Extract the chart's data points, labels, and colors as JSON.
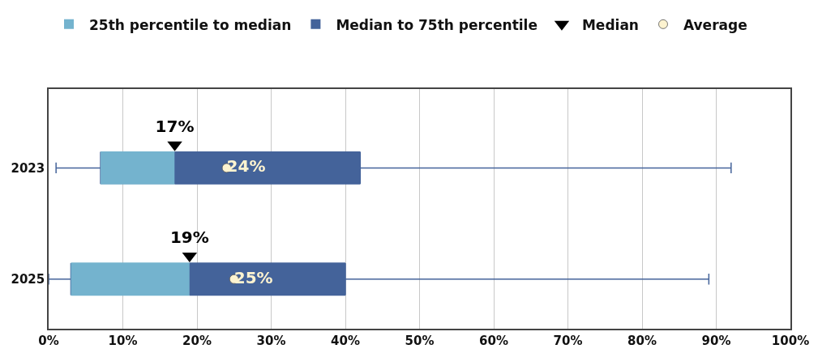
{
  "chart_data": {
    "type": "box",
    "orientation": "horizontal",
    "categories": [
      "2023",
      "2025"
    ],
    "boxes": [
      {
        "low": 1,
        "q1": 7,
        "median": 17,
        "q3": 42,
        "high": 92
      },
      {
        "low": 0,
        "q1": 3,
        "median": 19,
        "q3": 40,
        "high": 89
      }
    ],
    "series": [
      {
        "name": "25th percentile to median",
        "type": "bar",
        "color": "#74b3ce",
        "values": [
          10,
          16
        ],
        "base": [
          7,
          3
        ]
      },
      {
        "name": "Median to 75th percentile",
        "type": "bar",
        "color": "#44639a",
        "values": [
          25,
          21
        ],
        "base": [
          17,
          19
        ]
      },
      {
        "name": "Median",
        "type": "scatter",
        "marker": "triangle",
        "color": "#000000",
        "values": [
          17,
          19
        ],
        "value_labels": [
          "17%",
          "19%"
        ]
      },
      {
        "name": "Average",
        "type": "scatter",
        "marker": "circle",
        "color": "#fdf3d0",
        "values": [
          24,
          25
        ],
        "value_labels": [
          "24%",
          "25%"
        ]
      }
    ],
    "xlim": [
      0,
      100
    ],
    "xticks": [
      {
        "value": 0,
        "label": "0%"
      },
      {
        "value": 10,
        "label": "10%"
      },
      {
        "value": 20,
        "label": "20%"
      },
      {
        "value": 30,
        "label": "30%"
      },
      {
        "value": 40,
        "label": "40%"
      },
      {
        "value": 50,
        "label": "50%"
      },
      {
        "value": 60,
        "label": "60%"
      },
      {
        "value": 70,
        "label": "70%"
      },
      {
        "value": 80,
        "label": "80%"
      },
      {
        "value": 90,
        "label": "90%"
      },
      {
        "value": 100,
        "label": "100%"
      }
    ],
    "grid": "x",
    "legend": "top"
  }
}
